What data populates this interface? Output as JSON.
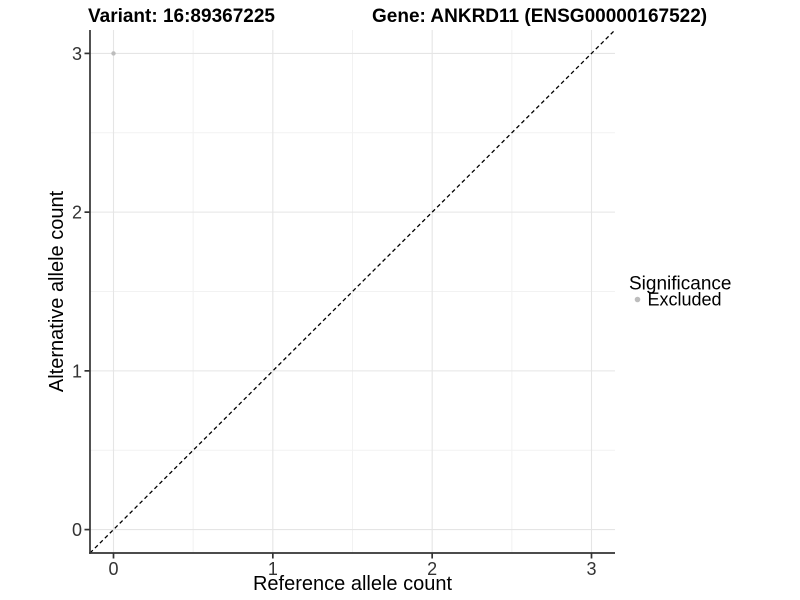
{
  "titles": {
    "variant": "Variant: 16:89367225",
    "gene": "Gene: ANKRD11 (ENSG00000167522)"
  },
  "axes": {
    "x_label": "Reference allele count",
    "y_label": "Alternative allele count",
    "x_ticks": [
      "0",
      "1",
      "2",
      "3"
    ],
    "y_ticks": [
      "0",
      "1",
      "2",
      "3"
    ]
  },
  "legend": {
    "title": "Significance",
    "items": [
      {
        "label": "Excluded",
        "color": "#bdbdbd"
      }
    ]
  },
  "colors": {
    "excluded_point": "#bdbdbd",
    "major_grid": "#e5e5e5",
    "minor_grid": "#f2f2f2",
    "axis_line": "#333333",
    "identity_line": "#000000"
  },
  "chart_data": {
    "type": "scatter",
    "title": "Variant: 16:89367225   Gene: ANKRD11 (ENSG00000167522)",
    "xlabel": "Reference allele count",
    "ylabel": "Alternative allele count",
    "xlim": [
      -0.1475,
      3.1475
    ],
    "ylim": [
      -0.1475,
      3.1475
    ],
    "x_tick_values": [
      0,
      1,
      2,
      3
    ],
    "y_tick_values": [
      0,
      1,
      2,
      3
    ],
    "minor_tick_values": [
      0.5,
      1.5,
      2.5
    ],
    "grid": true,
    "legend_position": "right",
    "series": [
      {
        "name": "Excluded",
        "color": "#bdbdbd",
        "point_radius": 2.2,
        "points": [
          {
            "x": 0,
            "y": 3
          }
        ]
      }
    ],
    "annotations": [
      {
        "type": "abline",
        "slope": 1,
        "intercept": 0,
        "style": "dashed",
        "color": "#000000"
      }
    ]
  }
}
